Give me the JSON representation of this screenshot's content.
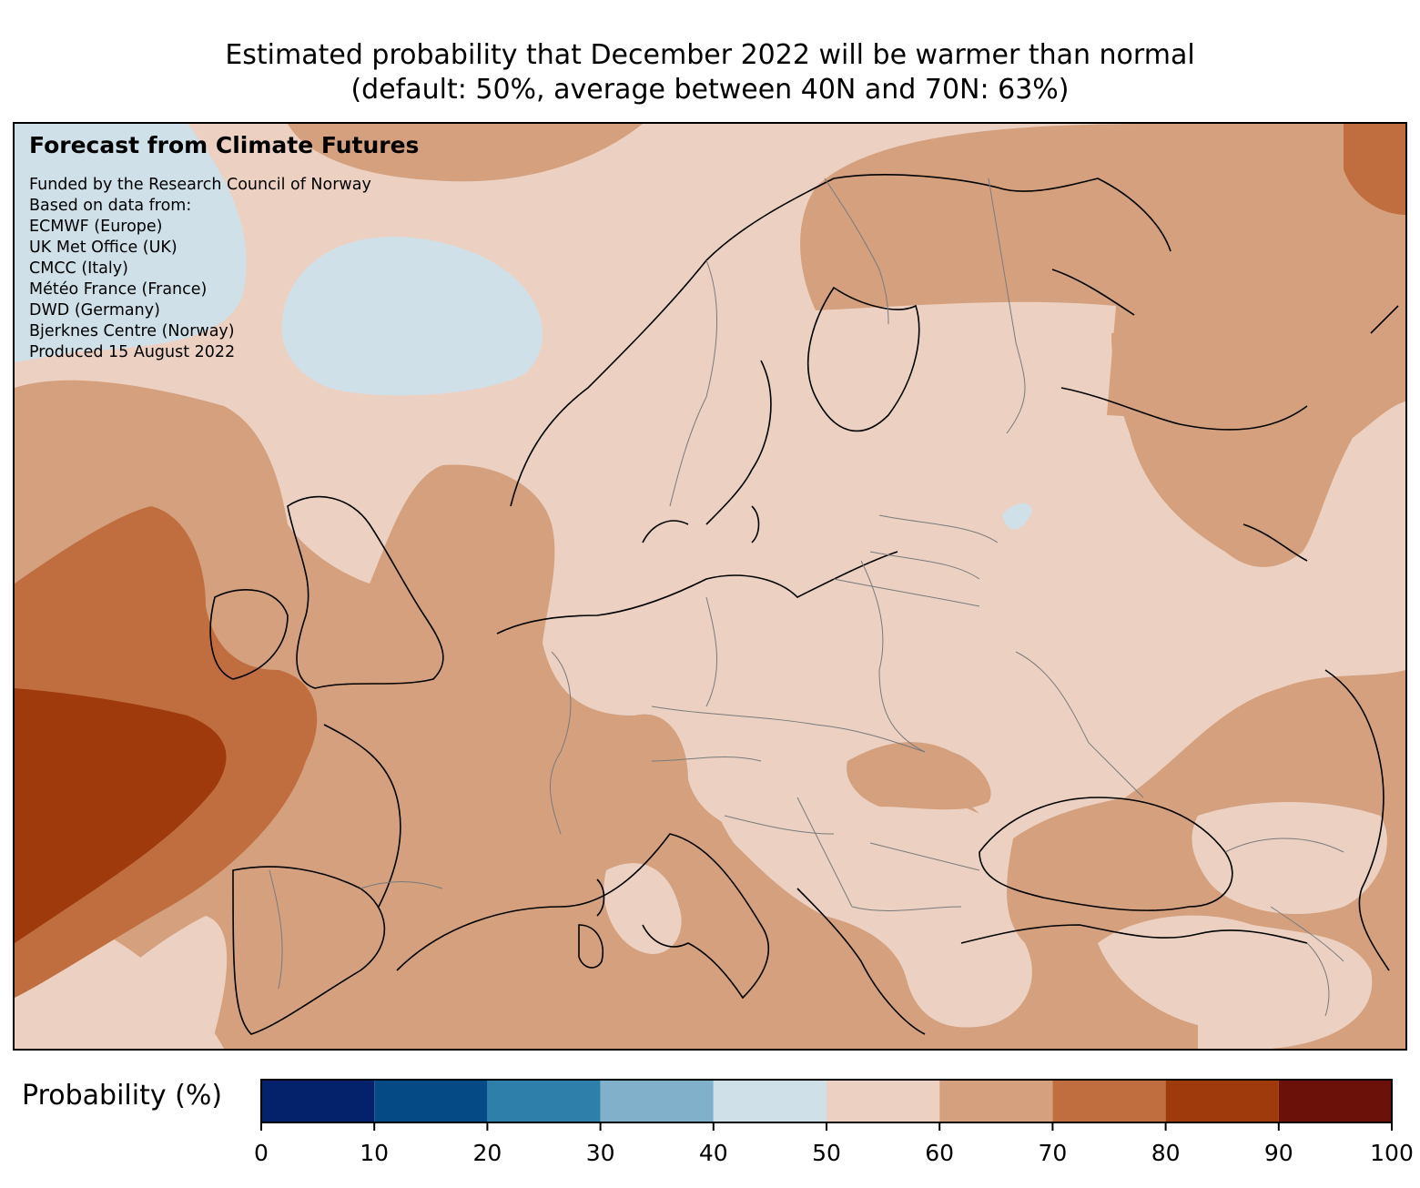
{
  "title": {
    "line1": "Estimated probability that December 2022 will be warmer than normal",
    "line2": "(default: 50%, average between 40N and 70N: 63%)"
  },
  "credits": {
    "headline": "Forecast from Climate Futures",
    "lines": [
      "Funded by the Research Council of Norway",
      "Based on data from:",
      "ECMWF (Europe)",
      "UK Met Office (UK)",
      "CMCC (Italy)",
      "Météo France (France)",
      "DWD (Germany)",
      "Bjerknes Centre (Norway)",
      "Produced 15 August 2022"
    ]
  },
  "colorbar": {
    "label": "Probability (%)",
    "bins": [
      {
        "from": 0,
        "to": 10,
        "color": "#03226b"
      },
      {
        "from": 10,
        "to": 20,
        "color": "#054a85"
      },
      {
        "from": 20,
        "to": 30,
        "color": "#2e7fa9"
      },
      {
        "from": 30,
        "to": 40,
        "color": "#80b0ca"
      },
      {
        "from": 40,
        "to": 50,
        "color": "#cfe0e9"
      },
      {
        "from": 50,
        "to": 60,
        "color": "#ecd1c3"
      },
      {
        "from": 60,
        "to": 70,
        "color": "#d4a07e"
      },
      {
        "from": 70,
        "to": 80,
        "color": "#c06e40"
      },
      {
        "from": 80,
        "to": 90,
        "color": "#9e3a0c"
      },
      {
        "from": 90,
        "to": 100,
        "color": "#6c110a"
      }
    ],
    "ticks": [
      "0",
      "10",
      "20",
      "30",
      "40",
      "50",
      "60",
      "70",
      "80",
      "90",
      "100"
    ]
  },
  "map": {
    "colors": {
      "bin_40_50": "#cfe0e9",
      "bin_50_60": "#ecd1c3",
      "bin_60_70": "#d4a07e",
      "bin_70_80": "#c06e40",
      "bin_80_90": "#9e3a0c",
      "coastline": "#000000",
      "borders": "#7a7a7a"
    }
  }
}
